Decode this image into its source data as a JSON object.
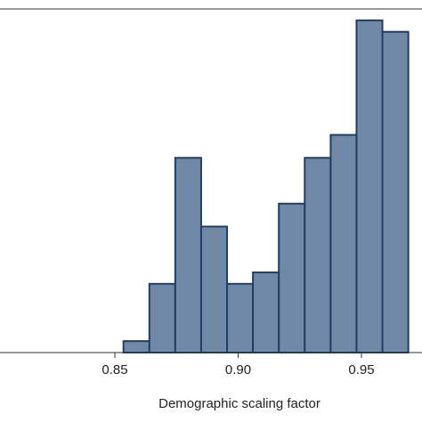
{
  "chart_data": {
    "type": "bar",
    "title": "",
    "xlabel": "Demographic scaling factor",
    "ylabel": "",
    "xlim": [
      0.8,
      0.97
    ],
    "ylim": [
      0,
      30
    ],
    "bin_width": 0.0105,
    "bins": [
      {
        "x_start": 0.8535,
        "count": 1
      },
      {
        "x_start": 0.864,
        "count": 6
      },
      {
        "x_start": 0.8745,
        "count": 17
      },
      {
        "x_start": 0.885,
        "count": 11
      },
      {
        "x_start": 0.8955,
        "count": 6
      },
      {
        "x_start": 0.906,
        "count": 7
      },
      {
        "x_start": 0.9165,
        "count": 13
      },
      {
        "x_start": 0.927,
        "count": 17
      },
      {
        "x_start": 0.9375,
        "count": 19
      },
      {
        "x_start": 0.948,
        "count": 29
      },
      {
        "x_start": 0.9585,
        "count": 28
      }
    ],
    "x_ticks": [
      {
        "value": 0.85,
        "label": "0.85"
      },
      {
        "value": 0.9,
        "label": "0.90"
      },
      {
        "value": 0.95,
        "label": "0.95"
      }
    ],
    "grid": false,
    "colors": {
      "bar_fill": "#7189a6",
      "bar_edge": "#1f3f66",
      "axis": "#333333"
    }
  }
}
